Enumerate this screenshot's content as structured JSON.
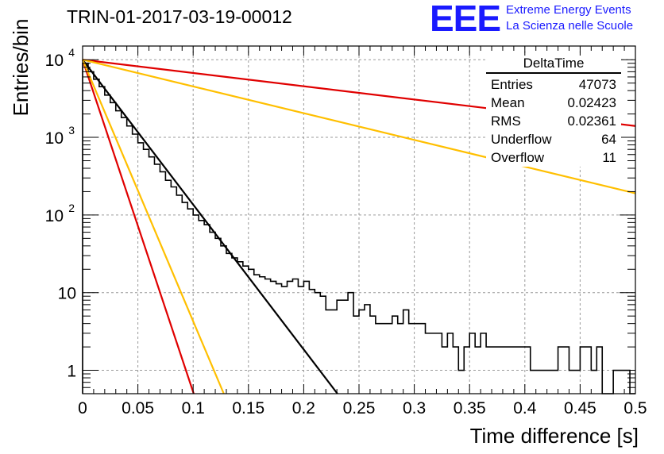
{
  "title": "TRIN-01-2017-03-19-00012",
  "logo": {
    "mark": "EEE",
    "line1": "Extreme Energy Events",
    "line2": "La Scienza nelle Scuole",
    "color": "#1a1aff"
  },
  "stats": {
    "name": "DeltaTime",
    "rows": [
      {
        "label": "Entries",
        "value": "47073"
      },
      {
        "label": "Mean",
        "value": "0.02423"
      },
      {
        "label": "RMS",
        "value": "0.02361"
      },
      {
        "label": "Underflow",
        "value": "64"
      },
      {
        "label": "Overflow",
        "value": "11"
      }
    ]
  },
  "chart_data": {
    "type": "line",
    "xlabel": "Time difference [s]",
    "ylabel": "Entries/bin",
    "xlim": [
      0,
      0.5
    ],
    "ylim": [
      0.5,
      15000
    ],
    "yscale": "log",
    "grid": true,
    "x_ticks": [
      "0",
      "0.05",
      "0.1",
      "0.15",
      "0.2",
      "0.25",
      "0.3",
      "0.35",
      "0.4",
      "0.45",
      "0.5"
    ],
    "y_ticks": [
      {
        "value": 1,
        "label": "1"
      },
      {
        "value": 10,
        "label": "10"
      },
      {
        "value": 100,
        "label": "10",
        "exp": "2"
      },
      {
        "value": 1000,
        "label": "10",
        "exp": "3"
      },
      {
        "value": 10000,
        "label": "10",
        "exp": "4"
      }
    ],
    "histogram": {
      "bin_width": 0.005,
      "color": "#000000",
      "values": [
        9000,
        7000,
        5600,
        4500,
        3500,
        2800,
        2200,
        1800,
        1400,
        1100,
        850,
        700,
        560,
        450,
        360,
        280,
        230,
        180,
        145,
        120,
        100,
        85,
        75,
        60,
        50,
        40,
        32,
        28,
        25,
        22,
        20,
        17,
        16,
        15,
        14,
        13,
        12,
        14,
        15,
        12,
        14,
        11,
        10,
        9,
        6,
        6,
        8,
        8,
        10,
        5,
        6,
        7,
        5,
        4,
        4,
        4,
        5,
        4,
        6,
        4,
        4,
        4,
        3,
        3,
        3,
        2,
        3,
        2,
        1,
        2,
        3,
        2,
        3,
        2,
        2,
        2,
        2,
        2,
        2,
        2,
        2,
        1,
        1,
        1,
        1,
        1,
        2,
        2,
        1,
        1,
        2,
        2,
        1,
        2,
        0.5,
        0.5,
        1,
        1,
        1,
        0.5
      ]
    },
    "series": [
      {
        "x": [
          0,
          0.2305
        ],
        "y": [
          10000,
          0.5
        ],
        "color": "#000000"
      },
      {
        "x": [
          0,
          0.5
        ],
        "y": [
          10000,
          1400
        ],
        "color": "#e00000"
      },
      {
        "x": [
          0,
          0.5
        ],
        "y": [
          10000,
          190
        ],
        "color": "#ffbf00"
      },
      {
        "x": [
          0,
          0.1005
        ],
        "y": [
          10000,
          0.5
        ],
        "color": "#e00000"
      },
      {
        "x": [
          0,
          0.1277
        ],
        "y": [
          10000,
          0.5
        ],
        "color": "#ffbf00"
      }
    ]
  }
}
